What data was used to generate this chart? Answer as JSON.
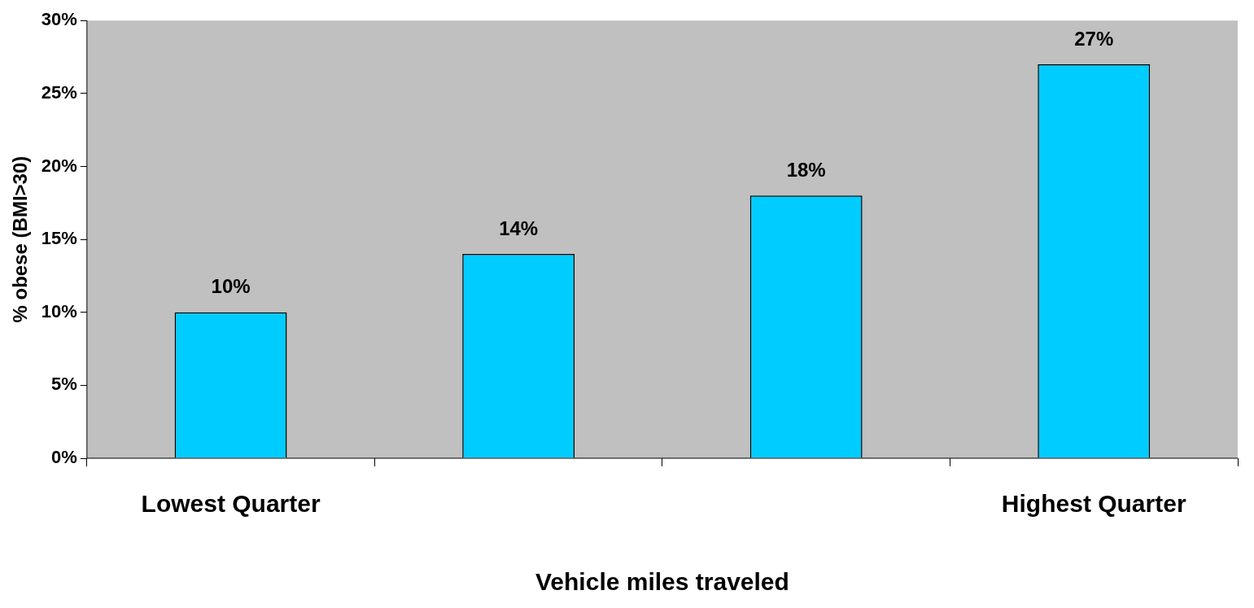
{
  "chart_data": {
    "type": "bar",
    "xlabel": "Vehicle miles traveled",
    "ylabel": "% obese (BMI>30)",
    "categories": [
      "Lowest Quarter",
      null,
      null,
      "Highest Quarter"
    ],
    "values": [
      10,
      14,
      18,
      27
    ],
    "value_labels": [
      "10%",
      "14%",
      "18%",
      "27%"
    ],
    "color": "#00ccff",
    "ylim": [
      0,
      30
    ],
    "yticks": [
      {
        "value": 0,
        "label": "0%"
      },
      {
        "value": 5,
        "label": "5%"
      },
      {
        "value": 10,
        "label": "10%"
      },
      {
        "value": 15,
        "label": "15%"
      },
      {
        "value": 20,
        "label": "20%"
      },
      {
        "value": 25,
        "label": "25%"
      },
      {
        "value": 30,
        "label": "30%"
      }
    ],
    "grid": false,
    "legend": false
  }
}
